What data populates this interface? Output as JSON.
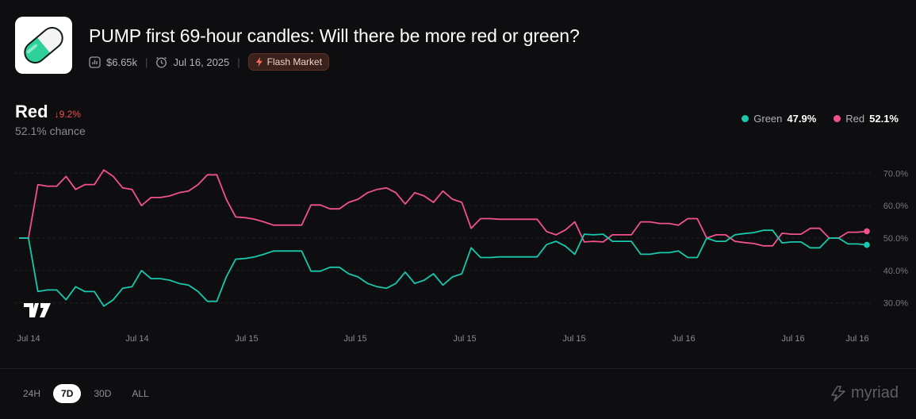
{
  "market": {
    "title": "PUMP first 69-hour candles: Will there be more red or green?",
    "volume": "$6.65k",
    "date": "Jul 16, 2025",
    "badge": "Flash Market"
  },
  "selected_outcome": {
    "label": "Red",
    "change": "9.2%",
    "chance": "52.1% chance"
  },
  "legend": [
    {
      "name": "Green",
      "value": "47.9%",
      "color": "#17c8ad"
    },
    {
      "name": "Red",
      "value": "52.1%",
      "color": "#f2518e"
    }
  ],
  "ranges": [
    "24H",
    "7D",
    "30D",
    "ALL"
  ],
  "active_range": "7D",
  "brand": "myriad",
  "chart_data": {
    "type": "line",
    "x_tick_labels": [
      "Jul 14",
      "Jul 14",
      "Jul 15",
      "Jul 15",
      "Jul 15",
      "Jul 15",
      "Jul 16",
      "Jul 16",
      "Jul 16"
    ],
    "y_ticks": [
      "30.0%",
      "40.0%",
      "50.0%",
      "60.0%",
      "70.0%"
    ],
    "ylim": [
      27,
      73
    ],
    "grid": true,
    "series": [
      {
        "name": "Red",
        "color": "#f2518e",
        "values": [
          50,
          50,
          66.5,
          66,
          66,
          69,
          65,
          66.5,
          66.5,
          71,
          69,
          65.5,
          65,
          60,
          62.5,
          62.5,
          63,
          64,
          64.5,
          66.5,
          69.5,
          69.5,
          62,
          56.5,
          56.3,
          55.8,
          55,
          54,
          54,
          54,
          54,
          60.2,
          60.2,
          59,
          59,
          61,
          62,
          64,
          65,
          65.5,
          64,
          60.5,
          64,
          63,
          61,
          64.5,
          62,
          61,
          53,
          56,
          56,
          55.8,
          55.8,
          55.8,
          55.8,
          55.8,
          52,
          51,
          52.5,
          55,
          48.8,
          49,
          48.8,
          51,
          51,
          51,
          55,
          55,
          54.5,
          54.5,
          54,
          56,
          56,
          50,
          51,
          51,
          49,
          48.6,
          48.3,
          47.6,
          47.6,
          51.5,
          51.2,
          51.2,
          53,
          53,
          50,
          50,
          51.8,
          51.8,
          52.1
        ]
      },
      {
        "name": "Green",
        "color": "#17c8ad",
        "values": [
          50,
          50,
          33.5,
          34,
          34,
          31,
          35,
          33.5,
          33.5,
          29,
          31,
          34.5,
          35,
          40,
          37.5,
          37.5,
          37,
          36,
          35.5,
          33.5,
          30.5,
          30.5,
          38,
          43.5,
          43.7,
          44.2,
          45,
          46,
          46,
          46,
          46,
          39.8,
          39.8,
          41,
          41,
          39,
          38,
          36,
          35,
          34.5,
          36,
          39.5,
          36,
          37,
          39,
          35.5,
          38,
          39,
          47,
          44,
          44,
          44.2,
          44.2,
          44.2,
          44.2,
          44.2,
          48,
          49,
          47.5,
          45,
          51.2,
          51,
          51.2,
          49,
          49,
          49,
          45,
          45,
          45.5,
          45.5,
          46,
          44,
          44,
          50,
          49,
          49,
          51,
          51.4,
          51.7,
          52.4,
          52.4,
          48.5,
          48.8,
          48.8,
          47,
          47,
          50,
          50,
          48.2,
          48.2,
          47.9
        ]
      }
    ]
  }
}
